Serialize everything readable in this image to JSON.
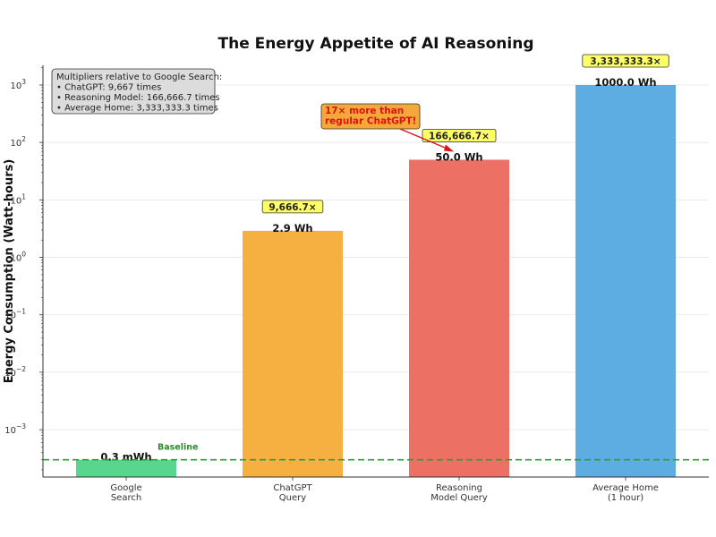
{
  "chart_data": {
    "type": "bar",
    "title": "The Energy Appetite of AI Reasoning",
    "ylabel": "Energy Consumption (Watt-hours)",
    "xlabel": "",
    "yscale": "log",
    "ylim": [
      0.00015,
      2200
    ],
    "grid": "horizontal",
    "categories": [
      [
        "Google",
        "Search"
      ],
      [
        "ChatGPT",
        "Query"
      ],
      [
        "Reasoning",
        "Model Query"
      ],
      [
        "Average Home",
        "(1 hour)"
      ]
    ],
    "values": [
      0.0003,
      2.9,
      50.0,
      1000.0
    ],
    "colors": [
      "#58d68d",
      "#f5b041",
      "#ec7063",
      "#5dade2"
    ],
    "value_labels": [
      "0.3 mWh",
      "2.9 Wh",
      "50.0 Wh",
      "1000.0 Wh"
    ],
    "multiplier_labels": [
      "",
      "9,666.7×",
      "166,666.7×",
      "3,333,333.3×"
    ],
    "yticks": [
      {
        "value": 0.001,
        "base": "10",
        "exp": "−3"
      },
      {
        "value": 0.01,
        "base": "10",
        "exp": "−2"
      },
      {
        "value": 0.1,
        "base": "10",
        "exp": "−1"
      },
      {
        "value": 1,
        "base": "10",
        "exp": "0"
      },
      {
        "value": 10,
        "base": "10",
        "exp": "1"
      },
      {
        "value": 100,
        "base": "10",
        "exp": "2"
      },
      {
        "value": 1000,
        "base": "10",
        "exp": "3"
      }
    ],
    "baseline": {
      "value": 0.0003,
      "label": "Baseline",
      "color": "#2e9e3a"
    },
    "info_box": {
      "lines": [
        "Multipliers relative to Google Search:",
        "• ChatGPT: 9,667 times",
        "• Reasoning Model: 166,666.7 times",
        "• Average Home: 3,333,333.3 times"
      ]
    },
    "callout": {
      "lines": [
        "17× more than",
        "regular ChatGPT!"
      ],
      "target_category": 2
    }
  }
}
